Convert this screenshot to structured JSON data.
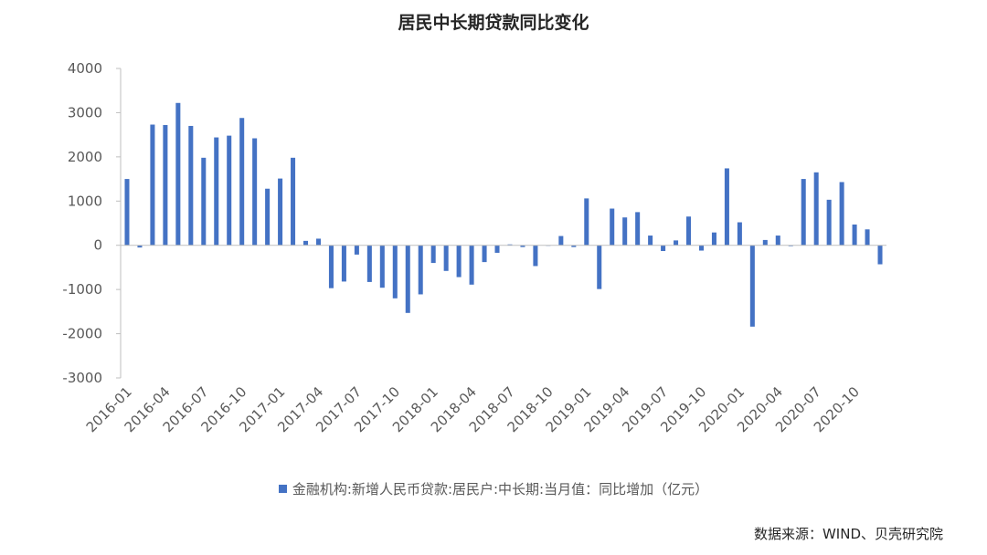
{
  "chart_data": {
    "type": "bar",
    "title": "居民中长期贷款同比变化",
    "ylim": [
      -3000,
      4000
    ],
    "yticks": [
      4000,
      3000,
      2000,
      1000,
      0,
      -1000,
      -2000,
      -3000
    ],
    "grid": false,
    "legend_position": "bottom",
    "color": "#4472C4",
    "series": [
      {
        "name": "金融机构:新增人民币贷款:居民户:中长期:当月值：同比增加（亿元）",
        "values": [
          1500,
          -50,
          2730,
          2720,
          3220,
          2700,
          1980,
          2440,
          2480,
          2880,
          2420,
          1280,
          1510,
          1980,
          100,
          150,
          -970,
          -820,
          -210,
          -830,
          -960,
          -1200,
          -1530,
          -1110,
          -400,
          -580,
          -720,
          -890,
          -380,
          -170,
          20,
          -40,
          -470,
          0,
          210,
          -40,
          1060,
          -990,
          830,
          630,
          750,
          220,
          -130,
          110,
          650,
          -120,
          290,
          1740,
          520,
          -1840,
          120,
          220,
          -20,
          1500,
          1650,
          1030,
          1430,
          470,
          360,
          -430
        ]
      }
    ],
    "categories": [
      "2016-01",
      "2016-02",
      "2016-03",
      "2016-04",
      "2016-05",
      "2016-06",
      "2016-07",
      "2016-08",
      "2016-09",
      "2016-10",
      "2016-11",
      "2016-12",
      "2017-01",
      "2017-02",
      "2017-03",
      "2017-04",
      "2017-05",
      "2017-06",
      "2017-07",
      "2017-08",
      "2017-09",
      "2017-10",
      "2017-11",
      "2017-12",
      "2018-01",
      "2018-02",
      "2018-03",
      "2018-04",
      "2018-05",
      "2018-06",
      "2018-07",
      "2018-08",
      "2018-09",
      "2018-10",
      "2018-11",
      "2018-12",
      "2019-01",
      "2019-02",
      "2019-03",
      "2019-04",
      "2019-05",
      "2019-06",
      "2019-07",
      "2019-08",
      "2019-09",
      "2019-10",
      "2019-11",
      "2019-12",
      "2020-01",
      "2020-02",
      "2020-03",
      "2020-04",
      "2020-05",
      "2020-06",
      "2020-07",
      "2020-08",
      "2020-09",
      "2020-10",
      "2020-11",
      "2020-12"
    ],
    "x_tick_labels": [
      "2016-01",
      "2016-04",
      "2016-07",
      "2016-10",
      "2017-01",
      "2017-04",
      "2017-07",
      "2017-10",
      "2018-01",
      "2018-04",
      "2018-07",
      "2018-10",
      "2019-01",
      "2019-04",
      "2019-07",
      "2019-10",
      "2020-01",
      "2020-04",
      "2020-07",
      "2020-10"
    ]
  },
  "legend_label": "金融机构:新增人民币贷款:居民户:中长期:当月值：同比增加（亿元）",
  "source": "数据来源：WIND、贝壳研究院"
}
